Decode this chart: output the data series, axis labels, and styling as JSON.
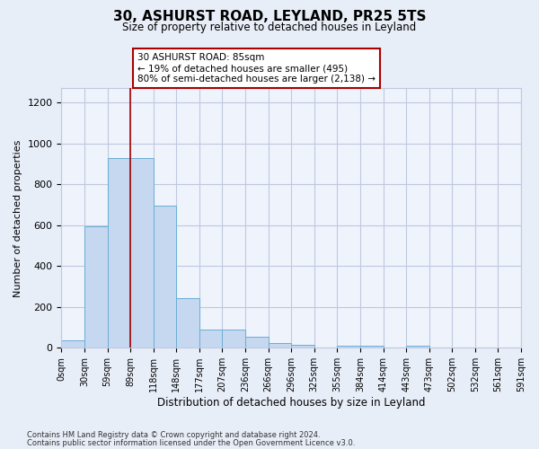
{
  "title": "30, ASHURST ROAD, LEYLAND, PR25 5TS",
  "subtitle": "Size of property relative to detached houses in Leyland",
  "xlabel": "Distribution of detached houses by size in Leyland",
  "ylabel": "Number of detached properties",
  "annotation_line1": "30 ASHURST ROAD: 85sqm",
  "annotation_line2": "← 19% of detached houses are smaller (495)",
  "annotation_line3": "80% of semi-detached houses are larger (2,138) →",
  "property_value_bin": 3,
  "bar_heights": [
    35,
    595,
    930,
    930,
    695,
    245,
    90,
    90,
    55,
    25,
    15,
    0,
    10,
    10,
    0,
    10,
    0,
    0,
    0,
    0
  ],
  "n_bins": 20,
  "bin_width": 29.5,
  "bar_color": "#c5d8f0",
  "bar_edge_color": "#6aaed6",
  "line_color": "#aa0000",
  "ylim": [
    0,
    1270
  ],
  "yticks": [
    0,
    200,
    400,
    600,
    800,
    1000,
    1200
  ],
  "bg_color": "#e8eef8",
  "plot_bg_color": "#eef3fc",
  "grid_color": "#c0c8e0",
  "tick_labels": [
    "0sqm",
    "30sqm",
    "59sqm",
    "89sqm",
    "118sqm",
    "148sqm",
    "177sqm",
    "207sqm",
    "236sqm",
    "266sqm",
    "296sqm",
    "325sqm",
    "355sqm",
    "384sqm",
    "414sqm",
    "443sqm",
    "473sqm",
    "502sqm",
    "532sqm",
    "561sqm",
    "591sqm"
  ],
  "footnote1": "Contains HM Land Registry data © Crown copyright and database right 2024.",
  "footnote2": "Contains public sector information licensed under the Open Government Licence v3.0."
}
